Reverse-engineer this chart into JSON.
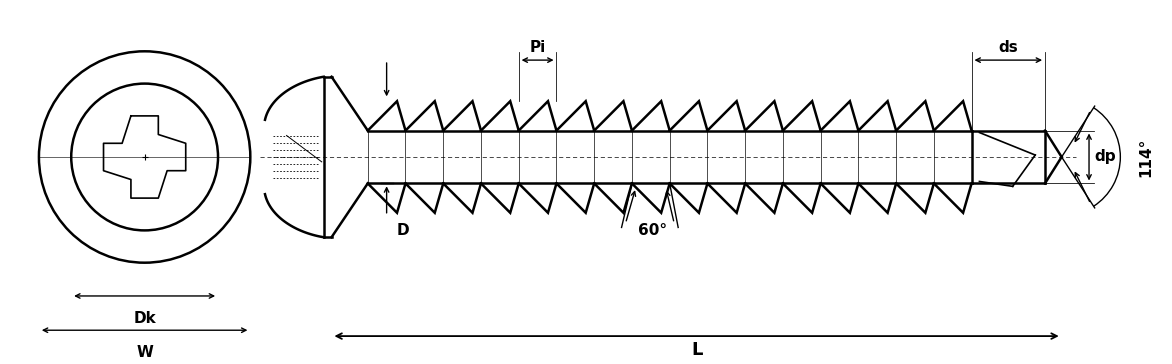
{
  "bg_color": "#ffffff",
  "line_color": "#000000",
  "figsize": [
    11.72,
    3.64
  ],
  "dpi": 100,
  "labels": {
    "Dk": "Dk",
    "W": "W",
    "L": "L",
    "D": "D",
    "Pi": "Pi",
    "ds": "ds",
    "dp": "dp",
    "angle1": "60°",
    "angle2": "114°"
  },
  "lw_thick": 1.8,
  "lw_med": 1.2,
  "lw_dim": 1.0,
  "lw_thin": 0.7
}
